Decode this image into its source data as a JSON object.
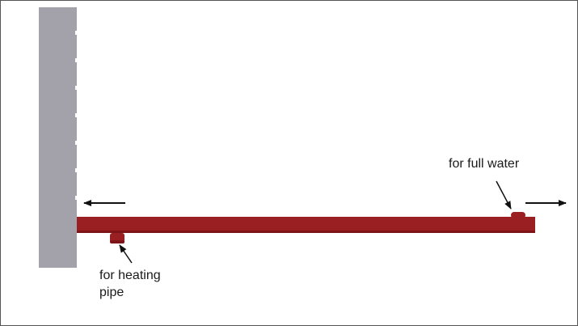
{
  "diagram": {
    "labels": {
      "full_water": "for full water",
      "heating_pipe_line1": "for heating",
      "heating_pipe_line2": "pipe"
    },
    "colors": {
      "wall": "#a3a2ab",
      "wall_notch": "#ffffff",
      "bar": "#9a1f22",
      "bar_dark": "#7d1518",
      "arrow": "#111111",
      "border": "#555555"
    }
  }
}
